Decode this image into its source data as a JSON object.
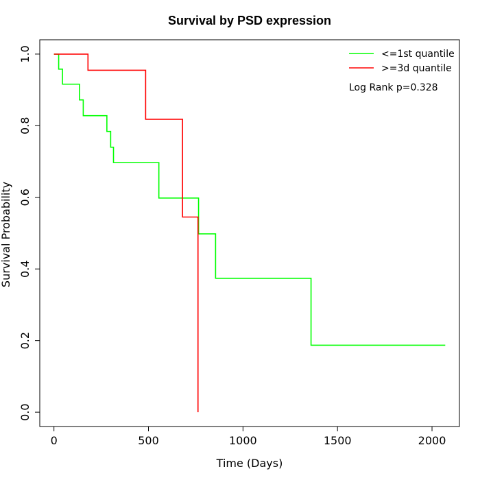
{
  "chart_data": {
    "type": "line",
    "title": "Survival by PSD expression",
    "xlabel": "Time (Days)",
    "ylabel": "Survival Probability",
    "xlim": [
      0,
      2070
    ],
    "ylim": [
      0,
      1
    ],
    "x_ticks": [
      0,
      500,
      1000,
      1500,
      2000
    ],
    "x_tick_labels": [
      "0",
      "500",
      "1000",
      "1500",
      "2000"
    ],
    "y_ticks": [
      0,
      0.2,
      0.4,
      0.6,
      0.8,
      1.0
    ],
    "y_tick_labels": [
      "0.0",
      "0.2",
      "0.4",
      "0.6",
      "0.8",
      "1.0"
    ],
    "grid": false,
    "legend_position": "top-right",
    "annotation": "Log Rank p=0.328",
    "series": [
      {
        "name": "<=1st quantile",
        "color": "#00ff00",
        "step": true,
        "x": [
          0,
          25,
          45,
          135,
          155,
          280,
          300,
          315,
          555,
          765,
          855,
          1360,
          2070
        ],
        "y": [
          1.0,
          0.958,
          0.916,
          0.872,
          0.828,
          0.784,
          0.74,
          0.697,
          0.598,
          0.498,
          0.374,
          0.187,
          0.187
        ]
      },
      {
        "name": ">=3d quantile",
        "color": "#ff0000",
        "step": true,
        "x": [
          0,
          180,
          485,
          680,
          762,
          762
        ],
        "y": [
          1.0,
          0.955,
          0.818,
          0.545,
          0.545,
          0.0
        ]
      }
    ]
  }
}
